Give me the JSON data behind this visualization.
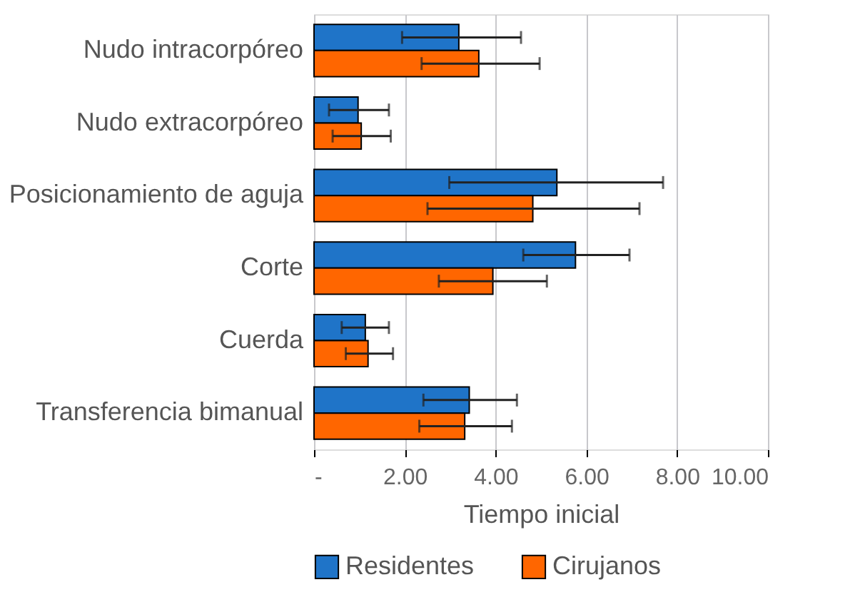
{
  "chart_data": {
    "type": "bar",
    "orientation": "horizontal",
    "xlabel": "Tiempo inicial",
    "categories": [
      "Nudo intracorpóreo",
      "Nudo extracorpóreo",
      "Posicionamiento de aguja",
      "Corte",
      "Cuerda",
      "Transferencia bimanual"
    ],
    "series": [
      {
        "name": "Residentes",
        "color": "#1f74c8",
        "values": [
          3.19,
          0.97,
          5.35,
          5.76,
          1.13,
          3.42
        ],
        "errors": [
          [
            1.94,
            4.56
          ],
          [
            0.33,
            1.65
          ],
          [
            2.98,
            7.69
          ],
          [
            4.61,
            6.95
          ],
          [
            0.61,
            1.65
          ],
          [
            2.41,
            4.47
          ]
        ]
      },
      {
        "name": "Cirujanos",
        "color": "#ff6600",
        "values": [
          3.63,
          1.04,
          4.82,
          3.94,
          1.19,
          3.32
        ],
        "errors": [
          [
            2.37,
            4.97
          ],
          [
            0.41,
            1.69
          ],
          [
            2.5,
            7.17
          ],
          [
            2.75,
            5.13
          ],
          [
            0.7,
            1.74
          ],
          [
            2.32,
            4.36
          ]
        ]
      }
    ],
    "xlim": [
      0,
      10
    ],
    "xticks": [
      {
        "value": 0,
        "label": "-"
      },
      {
        "value": 2,
        "label": "2.00"
      },
      {
        "value": 4,
        "label": "4.00"
      },
      {
        "value": 6,
        "label": "6.00"
      },
      {
        "value": 8,
        "label": "8.00"
      },
      {
        "value": 10,
        "label": "10.00"
      }
    ],
    "grid": "x",
    "legend": "bottom"
  }
}
